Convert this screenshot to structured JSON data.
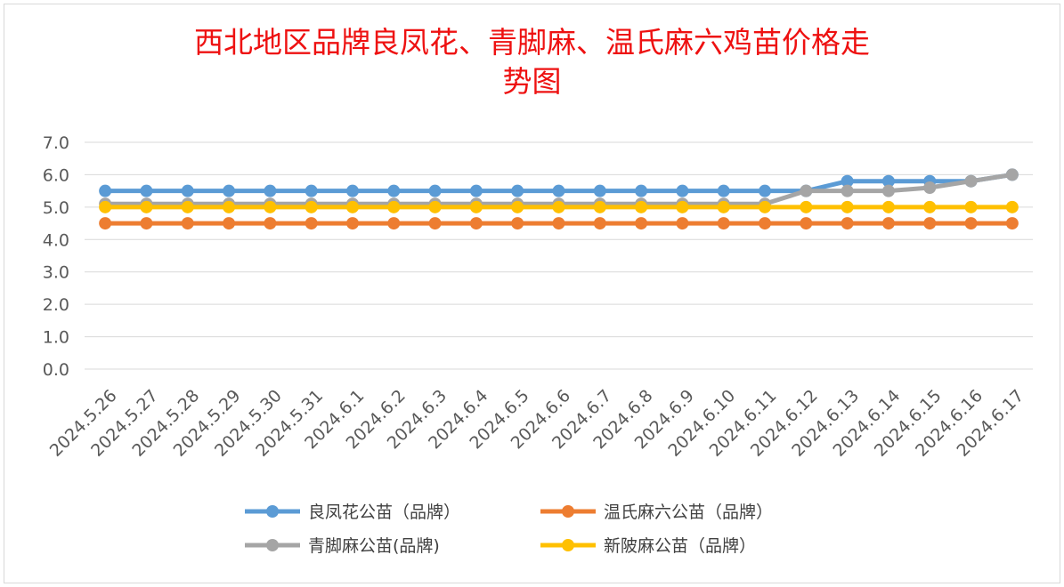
{
  "chart_data": {
    "type": "line",
    "title": "西北地区品牌良凤花、青脚麻、温氏麻六鸡苗价格走势图",
    "title_lines": [
      "西北地区品牌良凤花、青脚麻、温氏麻六鸡苗价格走",
      "势图"
    ],
    "xlabel": "",
    "ylabel": "",
    "ylim": [
      0,
      7
    ],
    "y_ticks": [
      "0.0",
      "1.0",
      "2.0",
      "3.0",
      "4.0",
      "5.0",
      "6.0",
      "7.0"
    ],
    "grid": true,
    "legend_position": "bottom",
    "categories": [
      "2024.5.26",
      "2024.5.27",
      "2024.5.28",
      "2024.5.29",
      "2024.5.30",
      "2024.5.31",
      "2024.6.1",
      "2024.6.2",
      "2024.6.3",
      "2024.6.4",
      "2024.6.5",
      "2024.6.6",
      "2024.6.7",
      "2024.6.8",
      "2024.6.9",
      "2024.6.10",
      "2024.6.11",
      "2024.6.12",
      "2024.6.13",
      "2024.6.14",
      "2024.6.15",
      "2024.6.16",
      "2024.6.17"
    ],
    "series": [
      {
        "name": "良凤花公苗（品牌）",
        "color": "#5b9bd5",
        "values": [
          5.5,
          5.5,
          5.5,
          5.5,
          5.5,
          5.5,
          5.5,
          5.5,
          5.5,
          5.5,
          5.5,
          5.5,
          5.5,
          5.5,
          5.5,
          5.5,
          5.5,
          5.5,
          5.8,
          5.8,
          5.8,
          5.8,
          6.0
        ]
      },
      {
        "name": "温氏麻六公苗（品牌）",
        "color": "#ed7d31",
        "values": [
          4.5,
          4.5,
          4.5,
          4.5,
          4.5,
          4.5,
          4.5,
          4.5,
          4.5,
          4.5,
          4.5,
          4.5,
          4.5,
          4.5,
          4.5,
          4.5,
          4.5,
          4.5,
          4.5,
          4.5,
          4.5,
          4.5,
          4.5
        ]
      },
      {
        "name": "青脚麻公苗(品牌)",
        "color": "#a5a5a5",
        "values": [
          5.1,
          5.1,
          5.1,
          5.1,
          5.1,
          5.1,
          5.1,
          5.1,
          5.1,
          5.1,
          5.1,
          5.1,
          5.1,
          5.1,
          5.1,
          5.1,
          5.1,
          5.5,
          5.5,
          5.5,
          5.6,
          5.8,
          6.0
        ]
      },
      {
        "name": "新陂麻公苗（品牌）",
        "color": "#ffc000",
        "values": [
          5.0,
          5.0,
          5.0,
          5.0,
          5.0,
          5.0,
          5.0,
          5.0,
          5.0,
          5.0,
          5.0,
          5.0,
          5.0,
          5.0,
          5.0,
          5.0,
          5.0,
          5.0,
          5.0,
          5.0,
          5.0,
          5.0,
          5.0
        ]
      }
    ],
    "colors": {
      "title": "#ee1111",
      "grid": "#d9d9d9",
      "tick": "#595959"
    }
  }
}
